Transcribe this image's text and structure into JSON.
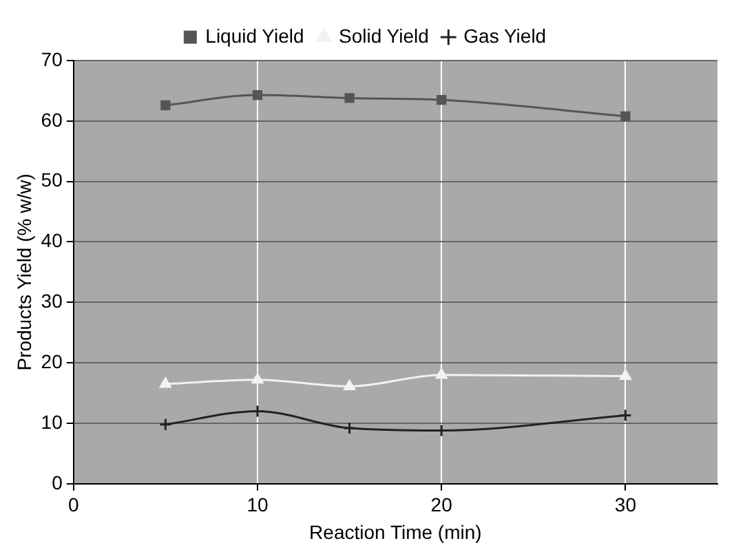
{
  "chart_data": {
    "type": "line",
    "xlabel": "Reaction Time (min)",
    "ylabel": "Products Yield (% w/w)",
    "x": [
      5,
      10,
      15,
      20,
      30
    ],
    "series": [
      {
        "name": "Liquid Yield",
        "color": "#555555",
        "marker": "square",
        "values": [
          62.6,
          64.3,
          63.8,
          63.5,
          60.8
        ]
      },
      {
        "name": "Solid Yield",
        "color": "#f2f2f2",
        "marker": "triangle",
        "values": [
          16.5,
          17.2,
          16.1,
          18.0,
          17.8
        ]
      },
      {
        "name": "Gas Yield",
        "color": "#222222",
        "marker": "cross",
        "values": [
          9.8,
          12.0,
          9.2,
          8.8,
          11.3
        ]
      }
    ],
    "xlim": [
      0,
      35
    ],
    "xticks": [
      0,
      10,
      20,
      30
    ],
    "ylim": [
      0,
      70
    ],
    "yticks": [
      0,
      10,
      20,
      30,
      40,
      50,
      60,
      70
    ],
    "grid": true,
    "legend": "top"
  }
}
